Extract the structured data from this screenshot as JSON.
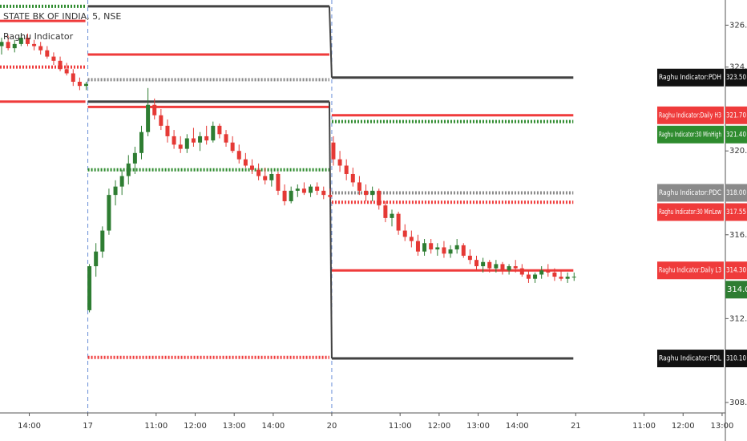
{
  "chart_data": {
    "type": "candlestick",
    "title": "STATE BK OF INDIA, 5, NSE",
    "subtitle": "Raghu Indicator",
    "up_color": "#2e7d32",
    "down_color": "#e53935",
    "xlim": [
      -27,
      196
    ],
    "ylim": [
      307.5,
      327.2
    ],
    "grid": false,
    "xticks": [
      {
        "value": -18,
        "label": "14:00"
      },
      {
        "value": 0,
        "label": "17"
      },
      {
        "value": 21,
        "label": "11:00"
      },
      {
        "value": 33,
        "label": "12:00"
      },
      {
        "value": 45,
        "label": "13:00"
      },
      {
        "value": 57,
        "label": "14:00"
      },
      {
        "value": 75,
        "label": "20"
      },
      {
        "value": 96,
        "label": "11:00"
      },
      {
        "value": 108,
        "label": "12:00"
      },
      {
        "value": 120,
        "label": "13:00"
      },
      {
        "value": 132,
        "label": "14:00"
      },
      {
        "value": 150,
        "label": "21"
      },
      {
        "value": 171,
        "label": "11:00"
      },
      {
        "value": 183,
        "label": "12:00"
      },
      {
        "value": 195,
        "label": "13:00"
      }
    ],
    "yticks": [
      {
        "value": 308,
        "label": "308.00"
      },
      {
        "value": 312,
        "label": "312.00"
      },
      {
        "value": 316,
        "label": "316.00"
      },
      {
        "value": 320,
        "label": "320.00"
      },
      {
        "value": 324,
        "label": "324.00"
      },
      {
        "value": 326,
        "label": "326.00"
      }
    ],
    "sessions": [
      {
        "start": -27,
        "end": 0
      },
      {
        "start": 0,
        "end": 75
      },
      {
        "start": 75,
        "end": 150
      }
    ],
    "candles": [
      [
        -27,
        325.0,
        325.4,
        324.6,
        325.2
      ],
      [
        -25,
        325.2,
        325.5,
        324.8,
        324.9
      ],
      [
        -23,
        324.9,
        325.3,
        324.7,
        325.1
      ],
      [
        -21,
        325.1,
        325.6,
        325.0,
        325.4
      ],
      [
        -19,
        325.4,
        325.6,
        325.0,
        325.1
      ],
      [
        -17,
        325.1,
        325.3,
        324.8,
        325.0
      ],
      [
        -15,
        325.0,
        325.2,
        324.6,
        324.8
      ],
      [
        -13,
        324.8,
        325.0,
        324.4,
        324.5
      ],
      [
        -11,
        324.5,
        324.7,
        324.1,
        324.3
      ],
      [
        -9,
        324.3,
        324.5,
        323.8,
        323.9
      ],
      [
        -7,
        323.9,
        324.2,
        323.6,
        323.7
      ],
      [
        -5,
        323.7,
        323.9,
        323.1,
        323.3
      ],
      [
        -3,
        323.3,
        323.5,
        322.9,
        323.1
      ],
      [
        -1,
        323.1,
        323.3,
        322.9,
        323.2
      ],
      [
        0,
        312.4,
        314.6,
        312.3,
        314.5
      ],
      [
        2,
        314.5,
        315.6,
        314.0,
        315.2
      ],
      [
        4,
        315.2,
        316.4,
        314.9,
        316.2
      ],
      [
        6,
        316.2,
        318.2,
        316.0,
        317.9
      ],
      [
        8,
        317.9,
        318.6,
        317.4,
        318.3
      ],
      [
        10,
        318.3,
        319.1,
        317.9,
        318.8
      ],
      [
        12,
        318.8,
        319.8,
        318.4,
        319.4
      ],
      [
        14,
        319.4,
        320.2,
        318.9,
        319.9
      ],
      [
        16,
        319.9,
        321.2,
        319.6,
        320.9
      ],
      [
        18,
        320.9,
        323.0,
        320.7,
        322.2
      ],
      [
        20,
        322.2,
        322.5,
        321.5,
        321.7
      ],
      [
        22,
        321.7,
        322.0,
        321.0,
        321.2
      ],
      [
        24,
        321.2,
        321.5,
        320.4,
        320.7
      ],
      [
        26,
        320.7,
        321.0,
        320.1,
        320.3
      ],
      [
        28,
        320.3,
        320.7,
        319.9,
        320.1
      ],
      [
        30,
        320.1,
        320.8,
        319.9,
        320.6
      ],
      [
        32,
        320.6,
        321.1,
        320.2,
        320.4
      ],
      [
        34,
        320.4,
        320.9,
        320.0,
        320.7
      ],
      [
        36,
        320.7,
        321.2,
        320.3,
        320.5
      ],
      [
        38,
        320.5,
        321.4,
        320.4,
        321.2
      ],
      [
        40,
        321.2,
        321.3,
        320.6,
        320.8
      ],
      [
        42,
        320.8,
        321.0,
        320.2,
        320.4
      ],
      [
        44,
        320.4,
        320.7,
        319.9,
        320.0
      ],
      [
        46,
        320.0,
        320.3,
        319.4,
        319.6
      ],
      [
        48,
        319.6,
        319.9,
        319.2,
        319.3
      ],
      [
        50,
        319.3,
        319.6,
        318.9,
        319.1
      ],
      [
        52,
        319.1,
        319.4,
        318.6,
        318.8
      ],
      [
        54,
        318.8,
        319.2,
        318.4,
        318.6
      ],
      [
        56,
        318.6,
        319.1,
        318.3,
        318.9
      ],
      [
        58,
        318.9,
        319.0,
        317.9,
        318.1
      ],
      [
        60,
        318.1,
        318.4,
        317.4,
        317.6
      ],
      [
        62,
        317.6,
        318.3,
        317.5,
        318.1
      ],
      [
        64,
        318.1,
        318.4,
        317.8,
        318.2
      ],
      [
        66,
        318.2,
        318.5,
        317.9,
        318.0
      ],
      [
        68,
        318.0,
        318.4,
        317.8,
        318.3
      ],
      [
        70,
        318.3,
        318.5,
        317.9,
        318.1
      ],
      [
        72,
        318.1,
        318.3,
        317.7,
        317.9
      ],
      [
        74,
        317.9,
        318.2,
        317.7,
        317.8
      ],
      [
        75,
        320.4,
        320.7,
        319.3,
        319.6
      ],
      [
        77,
        319.6,
        320.0,
        319.0,
        319.3
      ],
      [
        79,
        319.3,
        319.6,
        318.6,
        318.9
      ],
      [
        81,
        318.9,
        319.2,
        318.3,
        318.5
      ],
      [
        83,
        318.5,
        318.8,
        317.9,
        318.1
      ],
      [
        85,
        318.1,
        318.4,
        317.6,
        317.9
      ],
      [
        87,
        317.9,
        318.3,
        317.6,
        318.1
      ],
      [
        89,
        318.1,
        318.2,
        317.2,
        317.4
      ],
      [
        91,
        317.4,
        317.6,
        316.6,
        316.8
      ],
      [
        93,
        316.8,
        317.2,
        316.4,
        317.0
      ],
      [
        95,
        317.0,
        317.1,
        316.0,
        316.2
      ],
      [
        97,
        316.2,
        316.5,
        315.7,
        315.9
      ],
      [
        99,
        315.9,
        316.2,
        315.4,
        315.7
      ],
      [
        101,
        315.7,
        316.0,
        315.0,
        315.2
      ],
      [
        103,
        315.2,
        315.8,
        315.0,
        315.6
      ],
      [
        105,
        315.6,
        315.8,
        315.1,
        315.3
      ],
      [
        107,
        315.3,
        315.6,
        315.0,
        315.4
      ],
      [
        109,
        315.4,
        315.7,
        314.9,
        315.1
      ],
      [
        111,
        315.1,
        315.5,
        314.9,
        315.3
      ],
      [
        113,
        315.3,
        315.8,
        315.1,
        315.5
      ],
      [
        115,
        315.5,
        315.6,
        314.9,
        315.0
      ],
      [
        117,
        315.0,
        315.3,
        314.6,
        314.8
      ],
      [
        119,
        314.8,
        315.0,
        314.3,
        314.5
      ],
      [
        121,
        314.5,
        314.9,
        314.2,
        314.7
      ],
      [
        123,
        314.7,
        314.8,
        314.2,
        314.4
      ],
      [
        125,
        314.4,
        314.8,
        314.2,
        314.6
      ],
      [
        127,
        314.6,
        314.7,
        314.1,
        314.3
      ],
      [
        129,
        314.3,
        314.6,
        314.1,
        314.5
      ],
      [
        131,
        314.5,
        314.8,
        314.2,
        314.4
      ],
      [
        133,
        314.4,
        314.6,
        314.0,
        314.1
      ],
      [
        135,
        314.1,
        314.3,
        313.7,
        313.9
      ],
      [
        137,
        313.9,
        314.2,
        313.7,
        314.1
      ],
      [
        139,
        314.1,
        314.5,
        313.9,
        314.3
      ],
      [
        141,
        314.3,
        314.6,
        314.0,
        314.2
      ],
      [
        143,
        314.2,
        314.4,
        313.8,
        314.0
      ],
      [
        145,
        314.0,
        314.3,
        313.8,
        313.9
      ],
      [
        147,
        313.9,
        314.2,
        313.7,
        314.0
      ],
      [
        149,
        314.0,
        314.2,
        313.8,
        314.0
      ]
    ],
    "series": [
      {
        "name": "Raghu Indicator:PDH",
        "color": "#424242",
        "style": "step",
        "values": [
          null,
          326.9,
          323.5
        ],
        "value_labels": [
          null,
          null,
          "323.50"
        ]
      },
      {
        "name": "Raghu Indicator:Daily H3",
        "color": "#ef3b3b",
        "style": "solid",
        "values": [
          326.2,
          324.6,
          321.7
        ],
        "value_labels": [
          null,
          null,
          "321.70"
        ]
      },
      {
        "name": "Raghu Indicator:30 MinHigh",
        "color": "#2e8b2e",
        "style": "dotted",
        "values": [
          326.9,
          319.1,
          321.4
        ],
        "value_labels": [
          null,
          null,
          "321.40"
        ]
      },
      {
        "name": "Raghu Indicator:PDC",
        "color": "#8a8a8a",
        "style": "dotted",
        "values": [
          null,
          323.4,
          318.0
        ],
        "value_labels": [
          null,
          null,
          "318.00"
        ]
      },
      {
        "name": "Raghu Indicator:30 MinLow",
        "color": "#ef3b3b",
        "style": "dotted",
        "values": [
          324.0,
          310.15,
          317.55
        ],
        "value_labels": [
          null,
          null,
          "317.55"
        ]
      },
      {
        "name": "Raghu Indicator:Daily L3",
        "color": "#ef3b3b",
        "style": "solid",
        "values": [
          322.35,
          322.1,
          314.3
        ],
        "value_labels": [
          null,
          null,
          "314.30"
        ]
      },
      {
        "name": "Raghu Indicator:PDL",
        "color": "#424242",
        "style": "step",
        "values": [
          null,
          322.35,
          310.1
        ],
        "value_labels": [
          null,
          null,
          "310.10"
        ]
      }
    ],
    "last_price": 314.0,
    "last_price_label": "314.00"
  }
}
